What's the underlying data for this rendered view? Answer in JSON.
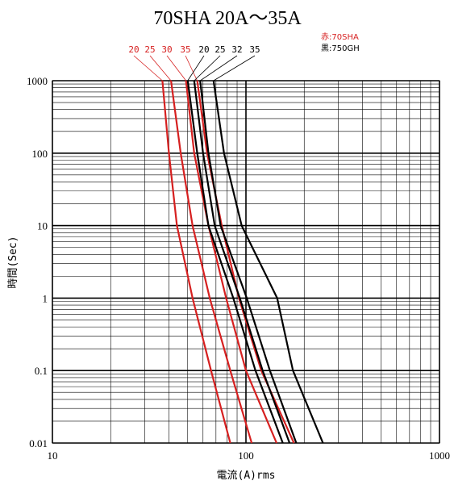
{
  "chart_data": {
    "type": "line",
    "title": "70SHA 20A～35A",
    "xlabel": "電流(A)rms",
    "ylabel": "時間(Sec)",
    "x_scale": "log",
    "y_scale": "log",
    "xlim": [
      10,
      1000
    ],
    "ylim": [
      0.01,
      1000
    ],
    "x_tick_labels": [
      "10",
      "100",
      "1000"
    ],
    "y_tick_labels": [
      "1000",
      "100",
      "10",
      "1",
      "0.1",
      "0.01"
    ],
    "grid": true,
    "legend": [
      {
        "text": "赤:70SHA",
        "color": "#d62020"
      },
      {
        "text": "黒:750GH",
        "color": "#000000"
      }
    ],
    "series": [
      {
        "name": "20",
        "group": "赤:70SHA",
        "color": "#d62020",
        "points": [
          [
            37,
            1000
          ],
          [
            40,
            100
          ],
          [
            44,
            10
          ],
          [
            53,
            1
          ],
          [
            66,
            0.1
          ],
          [
            83,
            0.01
          ]
        ]
      },
      {
        "name": "25",
        "group": "赤:70SHA",
        "color": "#d62020",
        "points": [
          [
            41,
            1000
          ],
          [
            46,
            100
          ],
          [
            53,
            10
          ],
          [
            65,
            1
          ],
          [
            83,
            0.1
          ],
          [
            107,
            0.01
          ]
        ]
      },
      {
        "name": "30",
        "group": "赤:70SHA",
        "color": "#d62020",
        "points": [
          [
            49,
            1000
          ],
          [
            54,
            100
          ],
          [
            64,
            10
          ],
          [
            79,
            1
          ],
          [
            100,
            0.1
          ],
          [
            144,
            0.01
          ]
        ]
      },
      {
        "name": "35",
        "group": "赤:70SHA",
        "color": "#d62020",
        "points": [
          [
            56,
            1000
          ],
          [
            63,
            100
          ],
          [
            75,
            10
          ],
          [
            92,
            1
          ],
          [
            120,
            0.1
          ],
          [
            177,
            0.01
          ]
        ]
      },
      {
        "name": "20",
        "group": "黒:750GH",
        "color": "#000000",
        "points": [
          [
            50,
            1000
          ],
          [
            56,
            100
          ],
          [
            64,
            10
          ],
          [
            86,
            1
          ],
          [
            112,
            0.1
          ],
          [
            155,
            0.01
          ]
        ]
      },
      {
        "name": "25",
        "group": "黒:750GH",
        "color": "#000000",
        "points": [
          [
            54,
            1000
          ],
          [
            60,
            100
          ],
          [
            69,
            10
          ],
          [
            93,
            1
          ],
          [
            122,
            0.1
          ],
          [
            168,
            0.01
          ]
        ]
      },
      {
        "name": "32",
        "group": "黒:750GH",
        "color": "#000000",
        "points": [
          [
            58,
            1000
          ],
          [
            64,
            100
          ],
          [
            74,
            10
          ],
          [
            101,
            1
          ],
          [
            133,
            0.1
          ],
          [
            182,
            0.01
          ]
        ]
      },
      {
        "name": "35",
        "group": "黒:750GH",
        "color": "#000000",
        "points": [
          [
            68,
            1000
          ],
          [
            77,
            100
          ],
          [
            95,
            10
          ],
          [
            145,
            1
          ],
          [
            175,
            0.1
          ],
          [
            250,
            0.01
          ]
        ]
      }
    ]
  }
}
